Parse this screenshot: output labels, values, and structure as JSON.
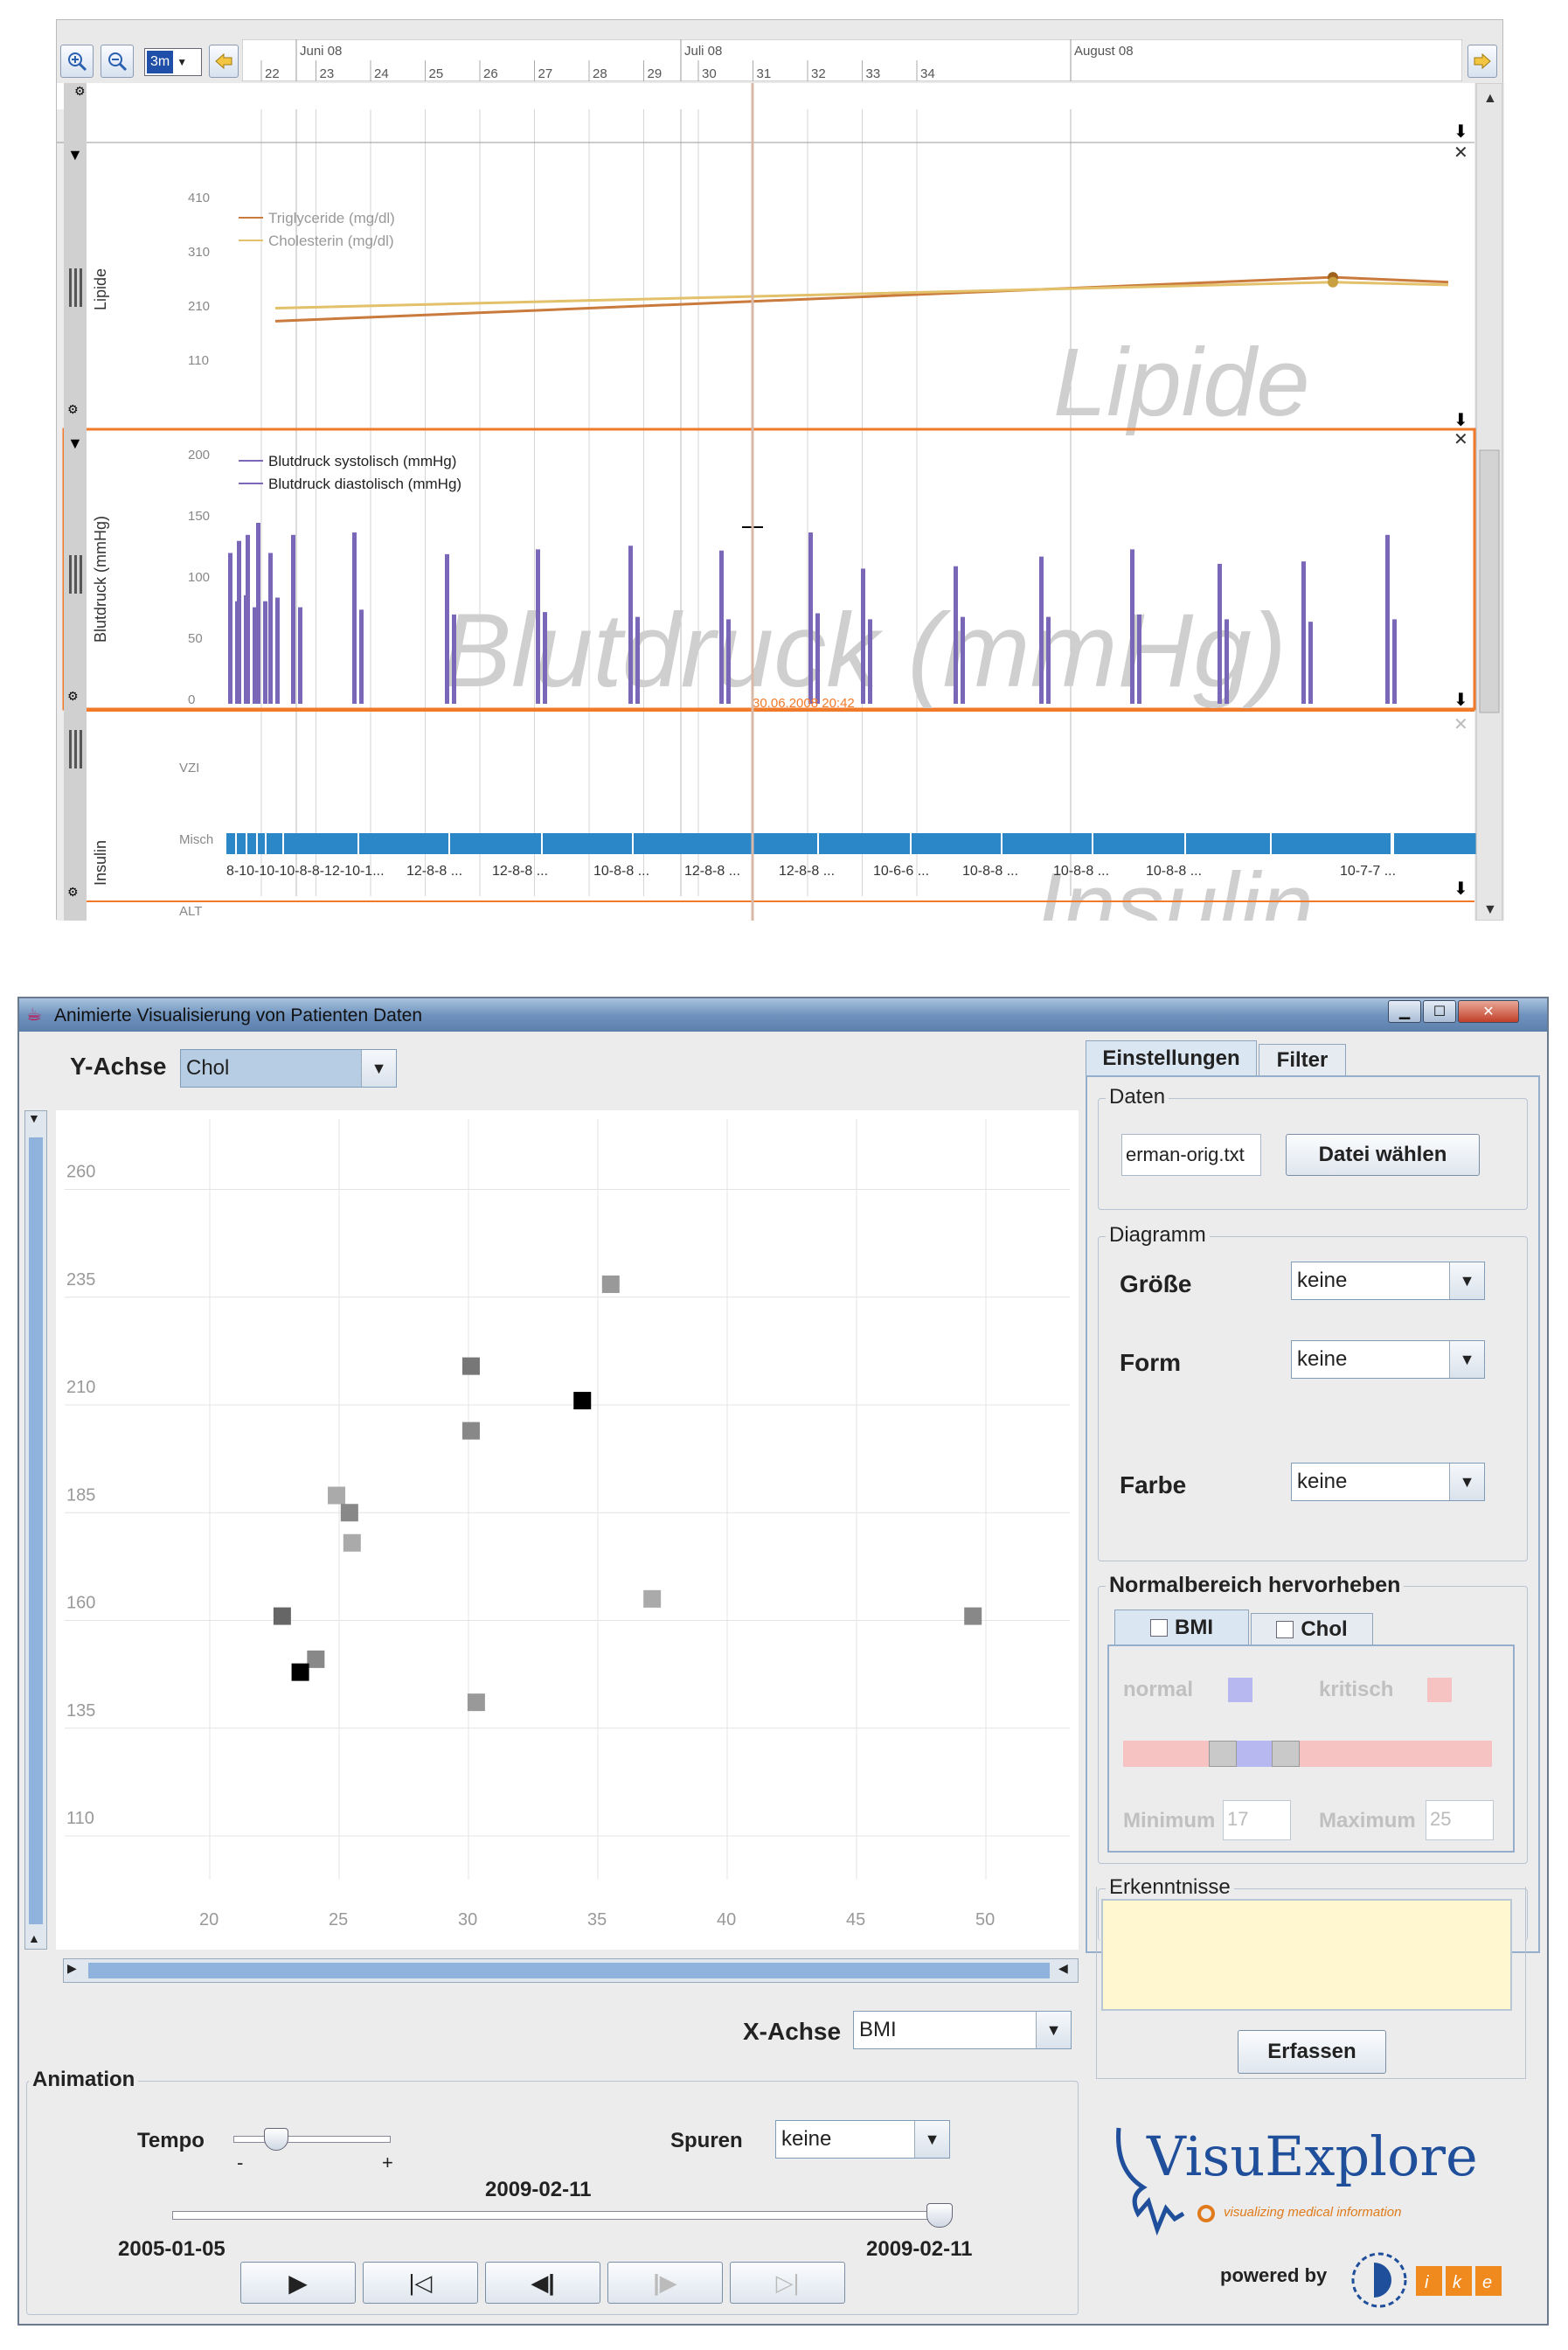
{
  "timeline": {
    "toolbar": {
      "zoom_in_icon": "zoom-in-icon",
      "zoom_out_icon": "zoom-out-icon",
      "range_value": "3m",
      "prev_icon": "arrow-left-icon",
      "next_icon": "arrow-right-icon"
    },
    "months": [
      "Juni 08",
      "Juli 08",
      "August 08"
    ],
    "weeks": [
      "22",
      "23",
      "24",
      "25",
      "26",
      "27",
      "28",
      "29",
      "30",
      "31",
      "32",
      "33",
      "34"
    ],
    "panel_lipide": {
      "title": "Lipide",
      "watermark": "Lipide",
      "ticks": [
        "410",
        "310",
        "210",
        "110"
      ],
      "legend": [
        "Triglyceride (mg/dl)",
        "Cholesterin (mg/dl)"
      ],
      "colors": [
        "#c97a3c",
        "#e3c16a"
      ]
    },
    "panel_blutdruck": {
      "title": "Blutdruck (mmHg)",
      "watermark": "Blutdruck (mmHg)",
      "ticks": [
        "200",
        "150",
        "100",
        "50",
        "0"
      ],
      "legend": [
        "Blutdruck systolisch (mmHg)",
        "Blutdruck diastolisch (mmHg)"
      ],
      "cursor_label": "30.06.2008 20:42",
      "color": "#7b67b8"
    },
    "panel_insulin": {
      "title": "Insulin",
      "watermark": "Insulin",
      "ticks": [
        "VZI",
        "Misch",
        "ALT"
      ],
      "labels": [
        "12-8-8 ...",
        "12-8-8 ...",
        "10-8-8 ...",
        "12-8-8 ...",
        "12-8-8 ...",
        "10-6-6 ...",
        "10-8-8 ...",
        "10-8-8 ...",
        "10-8-8 ...",
        "10-7-7 ..."
      ],
      "early_label": "8-10-10-10-8-8-12-10-1...",
      "color": "#2b87c8"
    }
  },
  "app": {
    "window_title": "Animierte Visualisierung von Patienten Daten",
    "y_axis": {
      "label": "Y-Achse",
      "value": "Chol"
    },
    "x_axis": {
      "label": "X-Achse",
      "value": "BMI"
    },
    "tabs": [
      "Einstellungen",
      "Filter"
    ],
    "daten": {
      "group": "Daten",
      "file": "erman-orig.txt",
      "button": "Datei wählen"
    },
    "diagramm": {
      "group": "Diagramm",
      "groesse": {
        "label": "Größe",
        "value": "keine"
      },
      "form": {
        "label": "Form",
        "value": "keine"
      },
      "farbe": {
        "label": "Farbe",
        "value": "keine"
      }
    },
    "normal": {
      "group": "Normalbereich hervorheben",
      "tabs": [
        "BMI",
        "Chol"
      ],
      "normal_label": "normal",
      "kritisch_label": "kritisch",
      "min_label": "Minimum",
      "min_value": "17",
      "max_label": "Maximum",
      "max_value": "25",
      "normal_color": "#b8b8f0",
      "kritisch_color": "#f6c2c2"
    },
    "erkenntnisse": {
      "group": "Erkenntnisse",
      "button": "Erfassen"
    },
    "animation": {
      "group": "Animation",
      "tempo_label": "Tempo",
      "tempo_minus": "-",
      "tempo_plus": "+",
      "tempo_level": 0.2,
      "spuren_label": "Spuren",
      "spuren_value": "keine",
      "current_date": "2009-02-11",
      "start_date": "2005-01-05",
      "end_date": "2009-02-11",
      "position": 1.0
    },
    "logo": {
      "name": "VisuExplore",
      "tagline": "visualizing medical information",
      "powered": "powered by"
    }
  },
  "chart_data": {
    "type": "scatter",
    "xlabel": "BMI",
    "ylabel": "Chol",
    "xlim": [
      18,
      53
    ],
    "ylim": [
      90,
      270
    ],
    "x_ticks": [
      20,
      25,
      30,
      35,
      40,
      45,
      50
    ],
    "y_ticks": [
      110,
      135,
      160,
      185,
      210,
      235,
      260
    ],
    "points": [
      {
        "x": 35.5,
        "y": 238,
        "shade": "#999999"
      },
      {
        "x": 30.1,
        "y": 219,
        "shade": "#777777"
      },
      {
        "x": 34.4,
        "y": 211,
        "shade": "#000000"
      },
      {
        "x": 30.1,
        "y": 204,
        "shade": "#888888"
      },
      {
        "x": 24.9,
        "y": 189,
        "shade": "#aaaaaa"
      },
      {
        "x": 25.4,
        "y": 185,
        "shade": "#888888"
      },
      {
        "x": 25.5,
        "y": 178,
        "shade": "#aaaaaa"
      },
      {
        "x": 37.1,
        "y": 165,
        "shade": "#aaaaaa"
      },
      {
        "x": 22.8,
        "y": 161,
        "shade": "#666666"
      },
      {
        "x": 49.5,
        "y": 161,
        "shade": "#888888"
      },
      {
        "x": 24.1,
        "y": 151,
        "shade": "#888888"
      },
      {
        "x": 23.5,
        "y": 148,
        "shade": "#000000"
      },
      {
        "x": 30.3,
        "y": 141,
        "shade": "#999999"
      }
    ]
  }
}
